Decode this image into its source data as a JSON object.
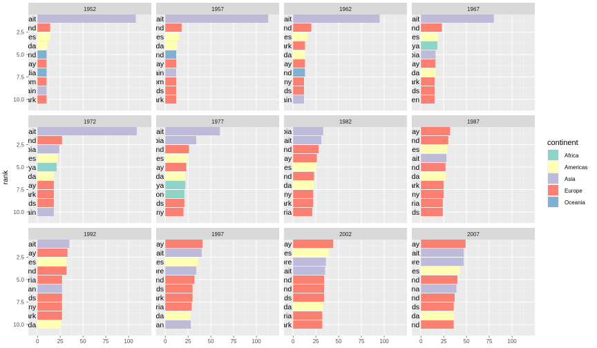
{
  "chart_data": {
    "type": "bar",
    "orientation": "horizontal",
    "facets": "3 rows x 4 columns, shared x axis",
    "ylabel": "rank",
    "xlabel": "",
    "xlim": [
      -10,
      125
    ],
    "x_ticks": [
      "0",
      "25",
      "50",
      "75",
      "100"
    ],
    "y_ticks": [
      "2.5",
      "5.0",
      "7.5",
      "10.0"
    ],
    "grid": true,
    "legend": {
      "title": "continent",
      "position": "right",
      "entries": [
        {
          "name": "Africa",
          "color": "#8DD3C7"
        },
        {
          "name": "Americas",
          "color": "#FFFFB3"
        },
        {
          "name": "Asia",
          "color": "#BEBADA"
        },
        {
          "name": "Europe",
          "color": "#FB8072"
        },
        {
          "name": "Oceania",
          "color": "#80B1D3"
        }
      ]
    },
    "panels": [
      {
        "year": "1952",
        "bars": [
          {
            "label": "Kuwait",
            "continent": "Asia",
            "value": 108
          },
          {
            "label": "Switzerland",
            "continent": "Europe",
            "value": 14
          },
          {
            "label": "United States",
            "continent": "Americas",
            "value": 14
          },
          {
            "label": "Canada",
            "continent": "Americas",
            "value": 11
          },
          {
            "label": "New Zealand",
            "continent": "Oceania",
            "value": 10
          },
          {
            "label": "Norway",
            "continent": "Europe",
            "value": 10
          },
          {
            "label": "Australia",
            "continent": "Oceania",
            "value": 10
          },
          {
            "label": "United Kingdom",
            "continent": "Europe",
            "value": 10
          },
          {
            "label": "Bahrain",
            "continent": "Asia",
            "value": 10
          },
          {
            "label": "Denmark",
            "continent": "Europe",
            "value": 10
          }
        ]
      },
      {
        "year": "1957",
        "bars": [
          {
            "label": "Kuwait",
            "continent": "Asia",
            "value": 113
          },
          {
            "label": "Switzerland",
            "continent": "Europe",
            "value": 18
          },
          {
            "label": "United States",
            "continent": "Americas",
            "value": 15
          },
          {
            "label": "Canada",
            "continent": "Americas",
            "value": 13
          },
          {
            "label": "New Zealand",
            "continent": "Oceania",
            "value": 12
          },
          {
            "label": "Norway",
            "continent": "Europe",
            "value": 12
          },
          {
            "label": "Bahrain",
            "continent": "Asia",
            "value": 12
          },
          {
            "label": "United Kingdom",
            "continent": "Europe",
            "value": 12
          },
          {
            "label": "Netherlands",
            "continent": "Europe",
            "value": 12
          },
          {
            "label": "Denmark",
            "continent": "Europe",
            "value": 12
          }
        ]
      },
      {
        "year": "1962",
        "bars": [
          {
            "label": "Kuwait",
            "continent": "Asia",
            "value": 95
          },
          {
            "label": "Switzerland",
            "continent": "Europe",
            "value": 20
          },
          {
            "label": "United States",
            "continent": "Americas",
            "value": 16
          },
          {
            "label": "Denmark",
            "continent": "Europe",
            "value": 13
          },
          {
            "label": "Canada",
            "continent": "Americas",
            "value": 13
          },
          {
            "label": "Norway",
            "continent": "Europe",
            "value": 13
          },
          {
            "label": "New Zealand",
            "continent": "Oceania",
            "value": 13
          },
          {
            "label": "Germany",
            "continent": "Europe",
            "value": 12
          },
          {
            "label": "Netherlands",
            "continent": "Europe",
            "value": 12
          },
          {
            "label": "Bahrain",
            "continent": "Asia",
            "value": 12
          }
        ]
      },
      {
        "year": "1967",
        "bars": [
          {
            "label": "Kuwait",
            "continent": "Asia",
            "value": 80
          },
          {
            "label": "Switzerland",
            "continent": "Europe",
            "value": 23
          },
          {
            "label": "United States",
            "continent": "Americas",
            "value": 19
          },
          {
            "label": "Libya",
            "continent": "Africa",
            "value": 18
          },
          {
            "label": "Saudi Arabia",
            "continent": "Asia",
            "value": 16
          },
          {
            "label": "Norway",
            "continent": "Europe",
            "value": 16
          },
          {
            "label": "Canada",
            "continent": "Americas",
            "value": 16
          },
          {
            "label": "Denmark",
            "continent": "Europe",
            "value": 15
          },
          {
            "label": "Netherlands",
            "continent": "Europe",
            "value": 15
          },
          {
            "label": "Sweden",
            "continent": "Europe",
            "value": 15
          }
        ]
      },
      {
        "year": "1972",
        "bars": [
          {
            "label": "Kuwait",
            "continent": "Asia",
            "value": 109
          },
          {
            "label": "Switzerland",
            "continent": "Europe",
            "value": 27
          },
          {
            "label": "Saudi Arabia",
            "continent": "Asia",
            "value": 24
          },
          {
            "label": "United States",
            "continent": "Americas",
            "value": 22
          },
          {
            "label": "Libya",
            "continent": "Africa",
            "value": 21
          },
          {
            "label": "Canada",
            "continent": "Americas",
            "value": 18
          },
          {
            "label": "Norway",
            "continent": "Europe",
            "value": 18
          },
          {
            "label": "Denmark",
            "continent": "Europe",
            "value": 18
          },
          {
            "label": "Netherlands",
            "continent": "Europe",
            "value": 18
          },
          {
            "label": "Bahrain",
            "continent": "Asia",
            "value": 18
          }
        ]
      },
      {
        "year": "1977",
        "bars": [
          {
            "label": "Kuwait",
            "continent": "Asia",
            "value": 60
          },
          {
            "label": "Saudi Arabia",
            "continent": "Asia",
            "value": 34
          },
          {
            "label": "Switzerland",
            "continent": "Europe",
            "value": 26
          },
          {
            "label": "United States",
            "continent": "Americas",
            "value": 24
          },
          {
            "label": "Norway",
            "continent": "Europe",
            "value": 23
          },
          {
            "label": "Canada",
            "continent": "Americas",
            "value": 22
          },
          {
            "label": "Libya",
            "continent": "Africa",
            "value": 22
          },
          {
            "label": "Gabon",
            "continent": "Africa",
            "value": 21
          },
          {
            "label": "Netherlands",
            "continent": "Europe",
            "value": 21
          },
          {
            "label": "Germany",
            "continent": "Europe",
            "value": 20
          }
        ]
      },
      {
        "year": "1982",
        "bars": [
          {
            "label": "Saudi Arabia",
            "continent": "Asia",
            "value": 33
          },
          {
            "label": "Kuwait",
            "continent": "Asia",
            "value": 31
          },
          {
            "label": "Switzerland",
            "continent": "Europe",
            "value": 28
          },
          {
            "label": "Norway",
            "continent": "Europe",
            "value": 26
          },
          {
            "label": "United States",
            "continent": "Americas",
            "value": 25
          },
          {
            "label": "Iceland",
            "continent": "Europe",
            "value": 23
          },
          {
            "label": "Canada",
            "continent": "Americas",
            "value": 23
          },
          {
            "label": "Germany",
            "continent": "Europe",
            "value": 22
          },
          {
            "label": "Denmark",
            "continent": "Europe",
            "value": 22
          },
          {
            "label": "Austria",
            "continent": "Europe",
            "value": 21
          }
        ]
      },
      {
        "year": "1987",
        "bars": [
          {
            "label": "Norway",
            "continent": "Europe",
            "value": 32
          },
          {
            "label": "Switzerland",
            "continent": "Europe",
            "value": 30
          },
          {
            "label": "United States",
            "continent": "Americas",
            "value": 29
          },
          {
            "label": "Kuwait",
            "continent": "Asia",
            "value": 28
          },
          {
            "label": "Iceland",
            "continent": "Europe",
            "value": 27
          },
          {
            "label": "Canada",
            "continent": "Americas",
            "value": 27
          },
          {
            "label": "Denmark",
            "continent": "Europe",
            "value": 25
          },
          {
            "label": "Germany",
            "continent": "Europe",
            "value": 25
          },
          {
            "label": "Austria",
            "continent": "Europe",
            "value": 24
          },
          {
            "label": "Netherlands",
            "continent": "Europe",
            "value": 24
          }
        ]
      },
      {
        "year": "1992",
        "bars": [
          {
            "label": "Kuwait",
            "continent": "Asia",
            "value": 35
          },
          {
            "label": "Norway",
            "continent": "Europe",
            "value": 33
          },
          {
            "label": "United States",
            "continent": "Americas",
            "value": 32
          },
          {
            "label": "Switzerland",
            "continent": "Europe",
            "value": 32
          },
          {
            "label": "Austria",
            "continent": "Europe",
            "value": 27
          },
          {
            "label": "Japan",
            "continent": "Asia",
            "value": 27
          },
          {
            "label": "Netherlands",
            "continent": "Europe",
            "value": 27
          },
          {
            "label": "Germany",
            "continent": "Europe",
            "value": 27
          },
          {
            "label": "Denmark",
            "continent": "Europe",
            "value": 27
          },
          {
            "label": "Canada",
            "continent": "Americas",
            "value": 26
          }
        ]
      },
      {
        "year": "1997",
        "bars": [
          {
            "label": "Norway",
            "continent": "Europe",
            "value": 41
          },
          {
            "label": "Kuwait",
            "continent": "Asia",
            "value": 40
          },
          {
            "label": "United States",
            "continent": "Americas",
            "value": 36
          },
          {
            "label": "Singapore",
            "continent": "Asia",
            "value": 34
          },
          {
            "label": "Switzerland",
            "continent": "Europe",
            "value": 32
          },
          {
            "label": "Netherlands",
            "continent": "Europe",
            "value": 30
          },
          {
            "label": "Denmark",
            "continent": "Europe",
            "value": 30
          },
          {
            "label": "Austria",
            "continent": "Europe",
            "value": 29
          },
          {
            "label": "Canada",
            "continent": "Americas",
            "value": 28
          },
          {
            "label": "Japan",
            "continent": "Asia",
            "value": 28
          }
        ]
      },
      {
        "year": "2002",
        "bars": [
          {
            "label": "Norway",
            "continent": "Europe",
            "value": 44
          },
          {
            "label": "United States",
            "continent": "Americas",
            "value": 39
          },
          {
            "label": "Singapore",
            "continent": "Asia",
            "value": 36
          },
          {
            "label": "Kuwait",
            "continent": "Asia",
            "value": 35
          },
          {
            "label": "Switzerland",
            "continent": "Europe",
            "value": 34
          },
          {
            "label": "Ireland",
            "continent": "Europe",
            "value": 34
          },
          {
            "label": "Netherlands",
            "continent": "Europe",
            "value": 34
          },
          {
            "label": "Canada",
            "continent": "Americas",
            "value": 33
          },
          {
            "label": "Austria",
            "continent": "Europe",
            "value": 32
          },
          {
            "label": "Denmark",
            "continent": "Europe",
            "value": 32
          }
        ]
      },
      {
        "year": "2007",
        "bars": [
          {
            "label": "Norway",
            "continent": "Europe",
            "value": 49
          },
          {
            "label": "Kuwait",
            "continent": "Asia",
            "value": 47
          },
          {
            "label": "Singapore",
            "continent": "Asia",
            "value": 47
          },
          {
            "label": "United States",
            "continent": "Americas",
            "value": 43
          },
          {
            "label": "Ireland",
            "continent": "Europe",
            "value": 40
          },
          {
            "label": "Hong Kong, China",
            "continent": "Asia",
            "value": 39
          },
          {
            "label": "Switzerland",
            "continent": "Europe",
            "value": 37
          },
          {
            "label": "Netherlands",
            "continent": "Europe",
            "value": 36
          },
          {
            "label": "Canada",
            "continent": "Americas",
            "value": 36
          },
          {
            "label": "Iceland",
            "continent": "Europe",
            "value": 36
          }
        ]
      }
    ]
  }
}
